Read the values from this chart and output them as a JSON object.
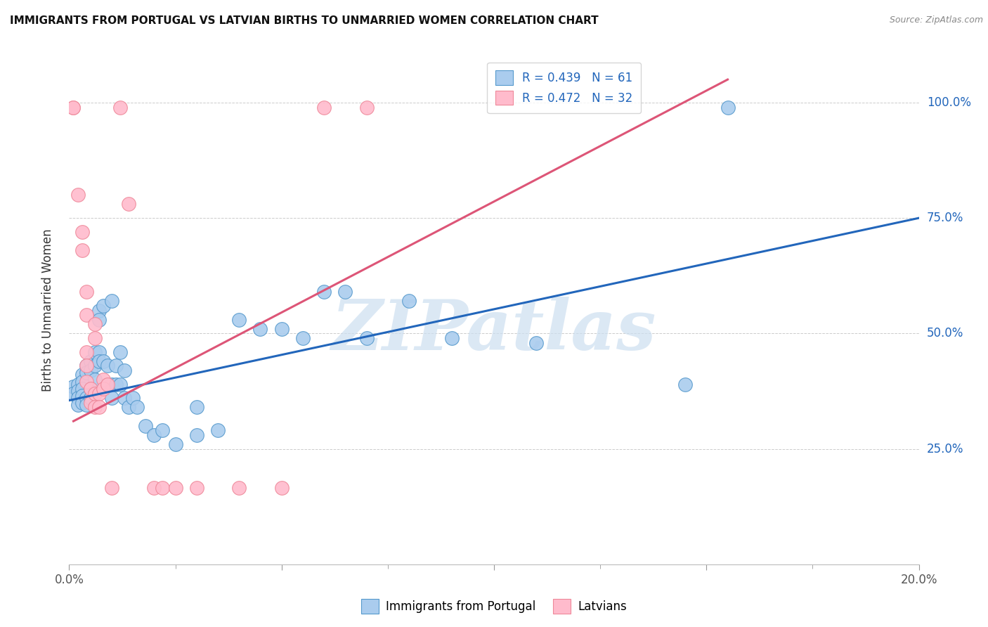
{
  "title": "IMMIGRANTS FROM PORTUGAL VS LATVIAN BIRTHS TO UNMARRIED WOMEN CORRELATION CHART",
  "source": "Source: ZipAtlas.com",
  "ylabel": "Births to Unmarried Women",
  "xlim": [
    0.0,
    0.2
  ],
  "ylim": [
    0.0,
    1.1
  ],
  "ytick_labels": [
    "25.0%",
    "50.0%",
    "75.0%",
    "100.0%"
  ],
  "ytick_positions": [
    0.25,
    0.5,
    0.75,
    1.0
  ],
  "legend_blue_text": "R = 0.439   N = 61",
  "legend_pink_text": "R = 0.472   N = 32",
  "blue_scatter_color": "#aaccee",
  "blue_edge_color": "#5599cc",
  "pink_scatter_color": "#ffbbcc",
  "pink_edge_color": "#ee8899",
  "blue_line_color": "#2266bb",
  "pink_line_color": "#dd5577",
  "watermark": "ZIPatlas",
  "watermark_color": "#cddff0",
  "blue_scatter": [
    [
      0.001,
      0.385
    ],
    [
      0.001,
      0.37
    ],
    [
      0.002,
      0.39
    ],
    [
      0.002,
      0.375
    ],
    [
      0.002,
      0.36
    ],
    [
      0.002,
      0.345
    ],
    [
      0.003,
      0.41
    ],
    [
      0.003,
      0.395
    ],
    [
      0.003,
      0.38
    ],
    [
      0.003,
      0.365
    ],
    [
      0.003,
      0.35
    ],
    [
      0.004,
      0.43
    ],
    [
      0.004,
      0.415
    ],
    [
      0.004,
      0.36
    ],
    [
      0.004,
      0.345
    ],
    [
      0.005,
      0.44
    ],
    [
      0.005,
      0.42
    ],
    [
      0.005,
      0.38
    ],
    [
      0.005,
      0.36
    ],
    [
      0.006,
      0.46
    ],
    [
      0.006,
      0.43
    ],
    [
      0.006,
      0.4
    ],
    [
      0.007,
      0.55
    ],
    [
      0.007,
      0.53
    ],
    [
      0.007,
      0.46
    ],
    [
      0.007,
      0.44
    ],
    [
      0.008,
      0.56
    ],
    [
      0.008,
      0.44
    ],
    [
      0.009,
      0.43
    ],
    [
      0.009,
      0.39
    ],
    [
      0.01,
      0.57
    ],
    [
      0.01,
      0.39
    ],
    [
      0.01,
      0.36
    ],
    [
      0.011,
      0.43
    ],
    [
      0.011,
      0.39
    ],
    [
      0.012,
      0.46
    ],
    [
      0.012,
      0.39
    ],
    [
      0.013,
      0.42
    ],
    [
      0.013,
      0.36
    ],
    [
      0.014,
      0.34
    ],
    [
      0.015,
      0.36
    ],
    [
      0.016,
      0.34
    ],
    [
      0.018,
      0.3
    ],
    [
      0.02,
      0.28
    ],
    [
      0.022,
      0.29
    ],
    [
      0.025,
      0.26
    ],
    [
      0.03,
      0.34
    ],
    [
      0.03,
      0.28
    ],
    [
      0.035,
      0.29
    ],
    [
      0.04,
      0.53
    ],
    [
      0.045,
      0.51
    ],
    [
      0.05,
      0.51
    ],
    [
      0.055,
      0.49
    ],
    [
      0.06,
      0.59
    ],
    [
      0.065,
      0.59
    ],
    [
      0.07,
      0.49
    ],
    [
      0.08,
      0.57
    ],
    [
      0.09,
      0.49
    ],
    [
      0.11,
      0.48
    ],
    [
      0.145,
      0.39
    ],
    [
      0.155,
      0.99
    ]
  ],
  "pink_scatter": [
    [
      0.001,
      0.99
    ],
    [
      0.001,
      0.99
    ],
    [
      0.002,
      0.8
    ],
    [
      0.003,
      0.72
    ],
    [
      0.003,
      0.68
    ],
    [
      0.004,
      0.59
    ],
    [
      0.004,
      0.54
    ],
    [
      0.004,
      0.46
    ],
    [
      0.004,
      0.43
    ],
    [
      0.004,
      0.395
    ],
    [
      0.005,
      0.38
    ],
    [
      0.005,
      0.35
    ],
    [
      0.006,
      0.52
    ],
    [
      0.006,
      0.49
    ],
    [
      0.006,
      0.37
    ],
    [
      0.006,
      0.34
    ],
    [
      0.007,
      0.37
    ],
    [
      0.007,
      0.34
    ],
    [
      0.008,
      0.4
    ],
    [
      0.008,
      0.38
    ],
    [
      0.009,
      0.39
    ],
    [
      0.01,
      0.165
    ],
    [
      0.012,
      0.99
    ],
    [
      0.014,
      0.78
    ],
    [
      0.02,
      0.165
    ],
    [
      0.022,
      0.165
    ],
    [
      0.025,
      0.165
    ],
    [
      0.03,
      0.165
    ],
    [
      0.04,
      0.165
    ],
    [
      0.05,
      0.165
    ],
    [
      0.06,
      0.99
    ],
    [
      0.07,
      0.99
    ]
  ],
  "blue_trend_x": [
    0.0,
    0.2
  ],
  "blue_trend_y": [
    0.355,
    0.75
  ],
  "pink_trend_x": [
    0.001,
    0.155
  ],
  "pink_trend_y": [
    0.31,
    1.05
  ],
  "background_color": "#ffffff",
  "grid_color": "#cccccc"
}
